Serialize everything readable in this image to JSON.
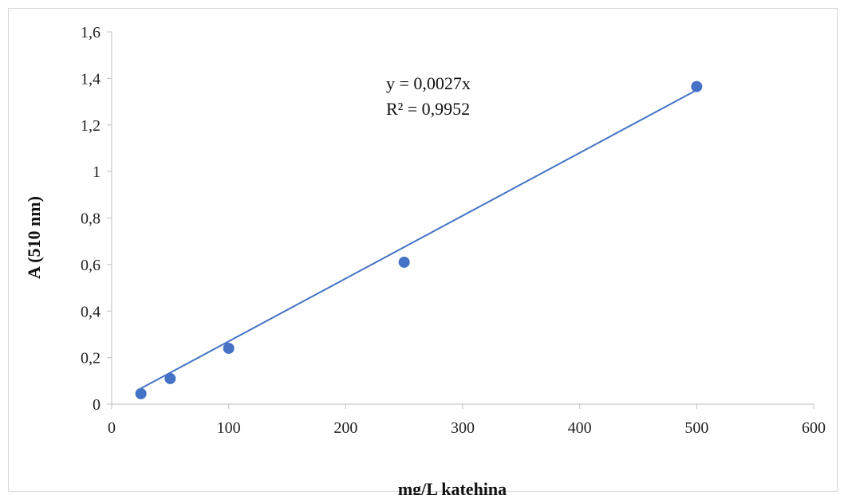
{
  "chart_data": {
    "type": "scatter",
    "xlabel": "mg/L katehina",
    "ylabel": "A (510 nm)",
    "xlim": [
      0,
      600
    ],
    "ylim": [
      0,
      1.6
    ],
    "x_ticks": [
      "0",
      "100",
      "200",
      "300",
      "400",
      "500",
      "600"
    ],
    "y_ticks": [
      "0",
      "0,2",
      "0,4",
      "0,6",
      "0,8",
      "1",
      "1,2",
      "1,4",
      "1,6"
    ],
    "grid": false,
    "series": [
      {
        "x": [
          25,
          50,
          100,
          250,
          500
        ],
        "y": [
          0.045,
          0.11,
          0.24,
          0.61,
          1.365
        ],
        "color": "#4472c4"
      }
    ],
    "trendline": {
      "slope": 0.0027,
      "x_range": [
        25,
        500
      ],
      "color": "#4472c4",
      "equation_label": "y = 0,0027x",
      "r2_label": "R² = 0,9952"
    }
  }
}
